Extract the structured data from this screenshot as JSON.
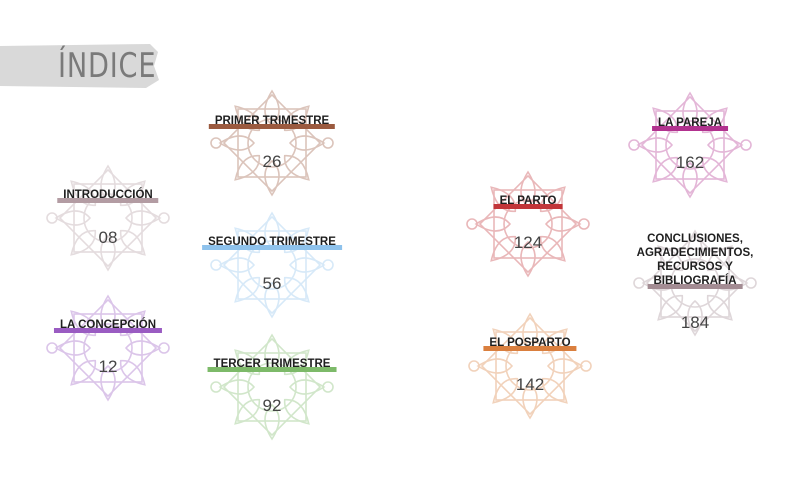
{
  "header": {
    "title": "ÍNDICE"
  },
  "entries": [
    {
      "label_lines": [
        "INTRODUCCIÓN"
      ],
      "page": "08",
      "color": "#b39ca3"
    },
    {
      "label_lines": [
        "LA CONCEPCIÓN"
      ],
      "page": "12",
      "color": "#9a5cc2"
    },
    {
      "label_lines": [
        "PRIMER TRIMESTRE"
      ],
      "page": "26",
      "color": "#9b5a3f"
    },
    {
      "label_lines": [
        "SEGUNDO TRIMESTRE"
      ],
      "page": "56",
      "color": "#8ec2ec"
    },
    {
      "label_lines": [
        "TERCER TRIMESTRE"
      ],
      "page": "92",
      "color": "#7dba69"
    },
    {
      "label_lines": [
        "EL PARTO"
      ],
      "page": "124",
      "color": "#c23539"
    },
    {
      "label_lines": [
        "EL POSPARTO"
      ],
      "page": "142",
      "color": "#da7f3e"
    },
    {
      "label_lines": [
        "LA PAREJA"
      ],
      "page": "162",
      "color": "#b2318f"
    },
    {
      "label_lines": [
        "CONCLUSIONES,",
        "AGRADECIMIENTOS,",
        "RECURSOS Y",
        "BIBLIOGRAFÍA"
      ],
      "page": "184",
      "color": "#a38c93"
    }
  ]
}
